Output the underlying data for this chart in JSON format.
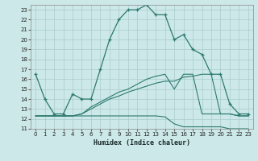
{
  "xlabel": "Humidex (Indice chaleur)",
  "bg_color": "#cce8e8",
  "grid_color": "#aacccc",
  "line_color": "#2d7a6e",
  "xlim": [
    -0.5,
    23.5
  ],
  "ylim": [
    11,
    23.5
  ],
  "xticks": [
    0,
    1,
    2,
    3,
    4,
    5,
    6,
    7,
    8,
    9,
    10,
    11,
    12,
    13,
    14,
    15,
    16,
    17,
    18,
    19,
    20,
    21,
    22,
    23
  ],
  "yticks": [
    11,
    12,
    13,
    14,
    15,
    16,
    17,
    18,
    19,
    20,
    21,
    22,
    23
  ],
  "line1_x": [
    0,
    1,
    2,
    3,
    4,
    5,
    6,
    7,
    8,
    9,
    10,
    11,
    12,
    13,
    14,
    15,
    16,
    17,
    18,
    19,
    20,
    21,
    22,
    23
  ],
  "line1_y": [
    16.5,
    14.0,
    12.5,
    12.5,
    14.5,
    14.0,
    14.0,
    17.0,
    20.0,
    22.0,
    23.0,
    23.0,
    23.5,
    22.5,
    22.5,
    20.0,
    20.5,
    19.0,
    18.5,
    16.5,
    16.5,
    13.5,
    12.5,
    12.5
  ],
  "line2_x": [
    0,
    1,
    2,
    3,
    4,
    5,
    6,
    7,
    8,
    9,
    10,
    11,
    12,
    13,
    14,
    15,
    16,
    17,
    18,
    19,
    20,
    21,
    22,
    23
  ],
  "line2_y": [
    12.3,
    12.3,
    12.3,
    12.3,
    12.3,
    12.3,
    12.3,
    12.3,
    12.3,
    12.3,
    12.3,
    12.3,
    12.3,
    12.3,
    12.2,
    11.5,
    11.2,
    11.2,
    11.2,
    11.2,
    11.2,
    11.0,
    11.0,
    11.0
  ],
  "line3_x": [
    0,
    1,
    2,
    3,
    4,
    5,
    6,
    7,
    8,
    9,
    10,
    11,
    12,
    13,
    14,
    15,
    16,
    17,
    18,
    19,
    20,
    21,
    22,
    23
  ],
  "line3_y": [
    12.3,
    12.3,
    12.3,
    12.3,
    12.3,
    12.5,
    13.0,
    13.5,
    14.0,
    14.3,
    14.7,
    15.0,
    15.3,
    15.6,
    15.8,
    15.8,
    16.2,
    16.3,
    16.5,
    16.5,
    12.5,
    12.5,
    12.3,
    12.3
  ],
  "line4_x": [
    0,
    1,
    2,
    3,
    4,
    5,
    6,
    7,
    8,
    9,
    10,
    11,
    12,
    13,
    14,
    15,
    16,
    17,
    18,
    19,
    20,
    21,
    22,
    23
  ],
  "line4_y": [
    12.3,
    12.3,
    12.3,
    12.3,
    12.3,
    12.5,
    13.2,
    13.7,
    14.2,
    14.7,
    15.0,
    15.5,
    16.0,
    16.3,
    16.5,
    15.0,
    16.5,
    16.5,
    12.5,
    12.5,
    12.5,
    12.5,
    12.3,
    12.3
  ]
}
